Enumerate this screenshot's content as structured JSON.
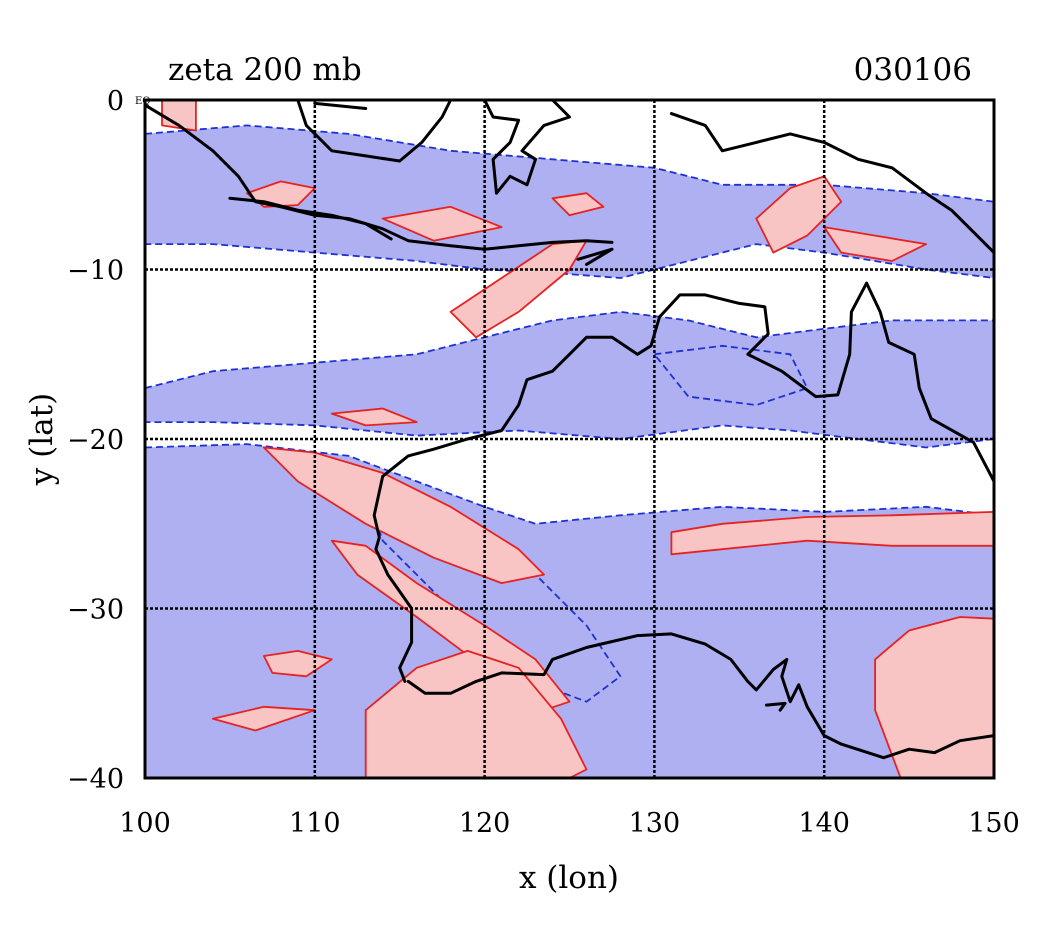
{
  "chart_data": {
    "type": "heatmap",
    "title": "zeta 200 mb",
    "date_label": "030106",
    "xlabel": "x (lon)",
    "ylabel": "y (lat)",
    "xlim": [
      100,
      150
    ],
    "ylim": [
      -40,
      0
    ],
    "x_ticks": [
      {
        "value": 100,
        "label": "100"
      },
      {
        "value": 110,
        "label": "110"
      },
      {
        "value": 120,
        "label": "120"
      },
      {
        "value": 130,
        "label": "130"
      },
      {
        "value": 140,
        "label": "140"
      },
      {
        "value": 150,
        "label": "150"
      }
    ],
    "y_ticks": [
      {
        "value": 0,
        "label": "0"
      },
      {
        "value": -10,
        "label": "−10"
      },
      {
        "value": -20,
        "label": "−20"
      },
      {
        "value": -30,
        "label": "−30"
      },
      {
        "value": -40,
        "label": "−40"
      }
    ],
    "corner_label": "EQ",
    "grid": true,
    "grid_lons": [
      110,
      120,
      130,
      140
    ],
    "grid_lats": [
      -10,
      -20,
      -30
    ],
    "colors": {
      "negative_fill": "#aeb0f2",
      "negative_contour": "#1e32d2",
      "positive_fill": "#f9c4c4",
      "positive_contour": "#e62222",
      "coastline": "#000000"
    },
    "regions": [
      {
        "sign": "negative",
        "points": [
          [
            100,
            -17
          ],
          [
            104,
            -16
          ],
          [
            110,
            -15.5
          ],
          [
            116,
            -15
          ],
          [
            120,
            -14
          ],
          [
            124,
            -13
          ],
          [
            128,
            -12.5
          ],
          [
            132,
            -13
          ],
          [
            136,
            -14
          ],
          [
            140,
            -13.5
          ],
          [
            144,
            -13
          ],
          [
            150,
            -13
          ],
          [
            150,
            -20
          ],
          [
            146,
            -20.5
          ],
          [
            142,
            -20
          ],
          [
            138,
            -19.5
          ],
          [
            134,
            -19.2
          ],
          [
            128,
            -20
          ],
          [
            122,
            -19.5
          ],
          [
            116,
            -19.8
          ],
          [
            110,
            -19.2
          ],
          [
            104,
            -19
          ],
          [
            100,
            -19
          ]
        ]
      },
      {
        "sign": "negative",
        "points": [
          [
            100,
            -20.5
          ],
          [
            106,
            -20.3
          ],
          [
            112,
            -21
          ],
          [
            116,
            -22.5
          ],
          [
            120,
            -24
          ],
          [
            123,
            -25
          ],
          [
            128,
            -24.5
          ],
          [
            134,
            -24
          ],
          [
            140,
            -24.3
          ],
          [
            146,
            -24
          ],
          [
            150,
            -24.5
          ],
          [
            150,
            -40
          ],
          [
            100,
            -40
          ]
        ]
      },
      {
        "sign": "negative",
        "points": [
          [
            100,
            -2
          ],
          [
            106,
            -1.5
          ],
          [
            112,
            -2
          ],
          [
            118,
            -3
          ],
          [
            124,
            -3.5
          ],
          [
            130,
            -4
          ],
          [
            134,
            -5
          ],
          [
            140,
            -5
          ],
          [
            146,
            -5.5
          ],
          [
            150,
            -6
          ],
          [
            150,
            -10.5
          ],
          [
            146,
            -10
          ],
          [
            140,
            -9
          ],
          [
            136,
            -8.5
          ],
          [
            132,
            -9.5
          ],
          [
            128,
            -10.5
          ],
          [
            124,
            -10.2
          ],
          [
            120,
            -10
          ],
          [
            116,
            -9.5
          ],
          [
            110,
            -9
          ],
          [
            104,
            -8.5
          ],
          [
            100,
            -8.5
          ]
        ]
      },
      {
        "sign": "negative",
        "points": [
          [
            113,
            -23
          ],
          [
            118,
            -24.5
          ],
          [
            122,
            -27
          ],
          [
            126,
            -31
          ],
          [
            128,
            -34
          ],
          [
            126,
            -35.5
          ],
          [
            122,
            -34
          ],
          [
            118,
            -30
          ],
          [
            114,
            -26
          ]
        ]
      },
      {
        "sign": "negative",
        "points": [
          [
            130,
            -15
          ],
          [
            134,
            -14.5
          ],
          [
            138,
            -15
          ],
          [
            139,
            -17
          ],
          [
            136,
            -18
          ],
          [
            132,
            -17.5
          ]
        ]
      },
      {
        "sign": "positive",
        "points": [
          [
            107,
            -20.5
          ],
          [
            110,
            -20.8
          ],
          [
            114,
            -22
          ],
          [
            118,
            -24
          ],
          [
            122,
            -26.5
          ],
          [
            123.5,
            -28
          ],
          [
            121,
            -28.5
          ],
          [
            117,
            -27
          ],
          [
            113,
            -25
          ],
          [
            109,
            -22.5
          ]
        ]
      },
      {
        "sign": "positive",
        "points": [
          [
            111,
            -26
          ],
          [
            113,
            -26.3
          ],
          [
            116,
            -28.5
          ],
          [
            120,
            -31
          ],
          [
            123,
            -33
          ],
          [
            125,
            -35.5
          ],
          [
            123.5,
            -36
          ],
          [
            120,
            -33.5
          ],
          [
            116,
            -30.5
          ],
          [
            112.5,
            -28
          ]
        ]
      },
      {
        "sign": "positive",
        "points": [
          [
            113,
            -36
          ],
          [
            116,
            -33.5
          ],
          [
            119,
            -32.5
          ],
          [
            122,
            -33.5
          ],
          [
            124.5,
            -36.5
          ],
          [
            126,
            -39.5
          ],
          [
            125,
            -40
          ],
          [
            113,
            -40
          ]
        ]
      },
      {
        "sign": "positive",
        "points": [
          [
            131,
            -25.5
          ],
          [
            134,
            -25
          ],
          [
            139,
            -24.6
          ],
          [
            144,
            -24.5
          ],
          [
            150,
            -24.3
          ],
          [
            150,
            -26.3
          ],
          [
            144,
            -26.3
          ],
          [
            139,
            -26
          ],
          [
            134,
            -26.5
          ],
          [
            131,
            -26.8
          ]
        ]
      },
      {
        "sign": "positive",
        "points": [
          [
            143,
            -33
          ],
          [
            145,
            -31.3
          ],
          [
            148,
            -30.5
          ],
          [
            150,
            -30.6
          ],
          [
            150,
            -40
          ],
          [
            144.5,
            -40
          ],
          [
            143,
            -36
          ]
        ]
      },
      {
        "sign": "positive",
        "points": [
          [
            118,
            -12.5
          ],
          [
            121,
            -10.5
          ],
          [
            124,
            -8.5
          ],
          [
            126,
            -8.3
          ],
          [
            125,
            -10
          ],
          [
            122,
            -12.5
          ],
          [
            119.5,
            -14
          ]
        ]
      },
      {
        "sign": "positive",
        "points": [
          [
            136,
            -7
          ],
          [
            138,
            -5.2
          ],
          [
            140,
            -4.5
          ],
          [
            141,
            -6
          ],
          [
            139,
            -8
          ],
          [
            137,
            -9
          ]
        ]
      },
      {
        "sign": "positive",
        "points": [
          [
            106,
            -5.5
          ],
          [
            108,
            -4.8
          ],
          [
            110,
            -5.2
          ],
          [
            109,
            -6.2
          ],
          [
            107,
            -6.3
          ]
        ]
      },
      {
        "sign": "positive",
        "points": [
          [
            101,
            0
          ],
          [
            103,
            0
          ],
          [
            103,
            -1.8
          ],
          [
            101,
            -1.5
          ]
        ]
      },
      {
        "sign": "positive",
        "points": [
          [
            107,
            -32.8
          ],
          [
            109,
            -32.5
          ],
          [
            111,
            -33
          ],
          [
            109.5,
            -34
          ],
          [
            107.5,
            -33.8
          ]
        ]
      },
      {
        "sign": "positive",
        "points": [
          [
            104,
            -36.5
          ],
          [
            107,
            -35.8
          ],
          [
            110,
            -36
          ],
          [
            106.5,
            -37.2
          ]
        ]
      },
      {
        "sign": "positive",
        "points": [
          [
            114,
            -7
          ],
          [
            118,
            -6.3
          ],
          [
            121,
            -7.5
          ],
          [
            117,
            -8.3
          ]
        ]
      },
      {
        "sign": "positive",
        "points": [
          [
            124,
            -5.8
          ],
          [
            126,
            -5.5
          ],
          [
            127,
            -6.3
          ],
          [
            125,
            -6.8
          ]
        ]
      },
      {
        "sign": "positive",
        "points": [
          [
            140,
            -7.5
          ],
          [
            143,
            -8
          ],
          [
            146,
            -8.5
          ],
          [
            144,
            -9.5
          ],
          [
            141,
            -9
          ]
        ]
      },
      {
        "sign": "positive",
        "points": [
          [
            111,
            -18.5
          ],
          [
            114,
            -18.2
          ],
          [
            116,
            -19
          ],
          [
            113,
            -19.2
          ]
        ]
      }
    ],
    "coastlines": [
      [
        [
          100,
          -0.3
        ],
        [
          102,
          -1.5
        ],
        [
          104,
          -3
        ],
        [
          105.5,
          -4.5
        ],
        [
          106.5,
          -6
        ],
        [
          108,
          -6.3
        ],
        [
          110,
          -6.8
        ],
        [
          112,
          -7
        ],
        [
          114,
          -7.6
        ],
        [
          115.5,
          -8.3
        ],
        [
          118,
          -8.6
        ],
        [
          120,
          -8.8
        ],
        [
          122,
          -8.6
        ],
        [
          124,
          -8.4
        ],
        [
          126,
          -8.3
        ],
        [
          127.5,
          -8.4
        ]
      ],
      [
        [
          105,
          -5.8
        ],
        [
          107,
          -6
        ],
        [
          109,
          -6.5
        ],
        [
          111,
          -6.8
        ],
        [
          113,
          -7.3
        ],
        [
          114.5,
          -8.2
        ]
      ],
      [
        [
          109,
          0
        ],
        [
          109.5,
          -1.5
        ],
        [
          111,
          -3
        ],
        [
          113,
          -3.3
        ],
        [
          115,
          -3.6
        ],
        [
          116.3,
          -2.5
        ],
        [
          117.5,
          -1
        ],
        [
          118,
          0
        ]
      ],
      [
        [
          120,
          0
        ],
        [
          120.5,
          -1
        ],
        [
          122,
          -1.2
        ],
        [
          121.5,
          -2.5
        ],
        [
          120.5,
          -3.5
        ],
        [
          120.7,
          -5.5
        ],
        [
          121.5,
          -4.5
        ],
        [
          122.5,
          -5
        ],
        [
          123,
          -3.5
        ],
        [
          122.2,
          -3
        ],
        [
          123.5,
          -1.5
        ],
        [
          125,
          -1
        ],
        [
          124,
          0
        ]
      ],
      [
        [
          131,
          -0.8
        ],
        [
          133,
          -1.5
        ],
        [
          134,
          -3
        ],
        [
          136,
          -2.5
        ],
        [
          138,
          -2
        ],
        [
          140,
          -2.5
        ],
        [
          142,
          -3.5
        ],
        [
          144,
          -4
        ],
        [
          146,
          -5.5
        ],
        [
          147.5,
          -6.5
        ],
        [
          149,
          -8
        ],
        [
          150,
          -9
        ]
      ],
      [
        [
          126,
          -9.7
        ],
        [
          127.5,
          -8.8
        ],
        [
          125.5,
          -9.4
        ]
      ],
      [
        [
          110,
          -0.2
        ],
        [
          113,
          -0.5
        ]
      ],
      [
        [
          115.3,
          -34.3
        ],
        [
          115,
          -33.5
        ],
        [
          115.7,
          -32
        ],
        [
          115.7,
          -30
        ],
        [
          115,
          -29
        ],
        [
          114.3,
          -28
        ],
        [
          113.6,
          -26.5
        ],
        [
          113.8,
          -25.8
        ],
        [
          113.5,
          -24.5
        ],
        [
          114,
          -22.2
        ],
        [
          115.5,
          -21
        ],
        [
          117,
          -20.6
        ],
        [
          119,
          -20
        ],
        [
          121,
          -19.5
        ],
        [
          122,
          -18
        ],
        [
          122.5,
          -16.5
        ],
        [
          124,
          -16
        ],
        [
          125,
          -15
        ],
        [
          126,
          -14
        ],
        [
          127.5,
          -14
        ],
        [
          129,
          -15
        ],
        [
          129.8,
          -14.5
        ],
        [
          130.3,
          -12.8
        ],
        [
          131.5,
          -11.5
        ],
        [
          133,
          -11.5
        ],
        [
          135,
          -12
        ],
        [
          136.5,
          -12.2
        ],
        [
          136.7,
          -13.8
        ],
        [
          135.5,
          -15
        ],
        [
          137.5,
          -16
        ],
        [
          139.5,
          -17.5
        ],
        [
          140.8,
          -17.4
        ],
        [
          141.5,
          -15
        ],
        [
          141.6,
          -12.5
        ],
        [
          142.5,
          -10.8
        ],
        [
          143.3,
          -12.5
        ],
        [
          143.8,
          -14.3
        ],
        [
          145.3,
          -15
        ],
        [
          145.6,
          -17
        ],
        [
          146.3,
          -18.8
        ],
        [
          148.8,
          -20.2
        ],
        [
          150,
          -22.5
        ]
      ],
      [
        [
          150,
          -37.5
        ],
        [
          148,
          -37.8
        ],
        [
          146.5,
          -38.5
        ],
        [
          145,
          -38.3
        ],
        [
          143.5,
          -38.8
        ],
        [
          141,
          -38
        ],
        [
          140,
          -37.5
        ],
        [
          139,
          -35.8
        ],
        [
          138.5,
          -34.5
        ],
        [
          138,
          -35.5
        ],
        [
          137.5,
          -34
        ],
        [
          137.8,
          -33
        ],
        [
          137,
          -33.6
        ],
        [
          136,
          -34.8
        ],
        [
          135.5,
          -34.3
        ],
        [
          134.5,
          -33
        ],
        [
          133,
          -32.1
        ],
        [
          131,
          -31.5
        ],
        [
          129,
          -31.6
        ],
        [
          126,
          -32.3
        ],
        [
          124,
          -33
        ],
        [
          123.5,
          -33.9
        ],
        [
          121,
          -33.8
        ],
        [
          119.5,
          -34.3
        ],
        [
          118,
          -35
        ],
        [
          116.5,
          -35
        ],
        [
          115.5,
          -34.3
        ]
      ],
      [
        [
          136.6,
          -35.7
        ],
        [
          137.7,
          -35.6
        ],
        [
          137.4,
          -36
        ]
      ]
    ]
  }
}
